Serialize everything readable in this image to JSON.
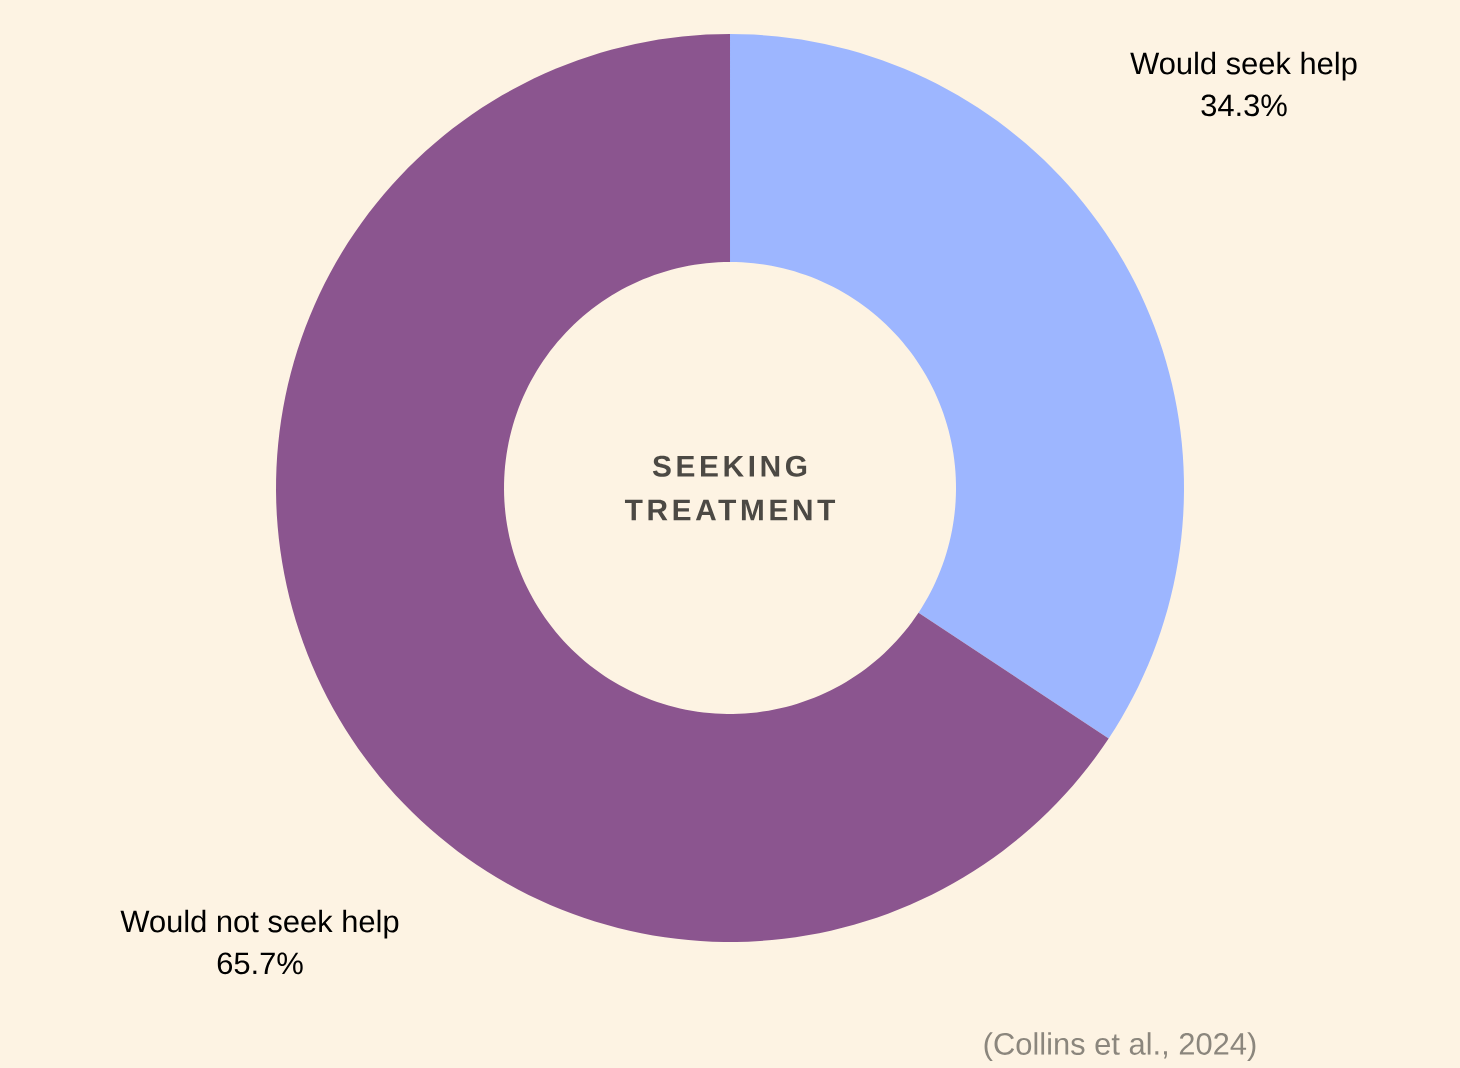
{
  "chart_data": {
    "type": "donut",
    "title": "SEEKING TREATMENT",
    "categories": [
      "Would seek help",
      "Would not seek help"
    ],
    "values": [
      34.3,
      65.7
    ],
    "value_labels": [
      "34.3%",
      "65.7%"
    ],
    "colors": [
      "#9db6ff",
      "#8b558f"
    ],
    "annotations": [
      "(Collins et al., 2024)"
    ]
  }
}
